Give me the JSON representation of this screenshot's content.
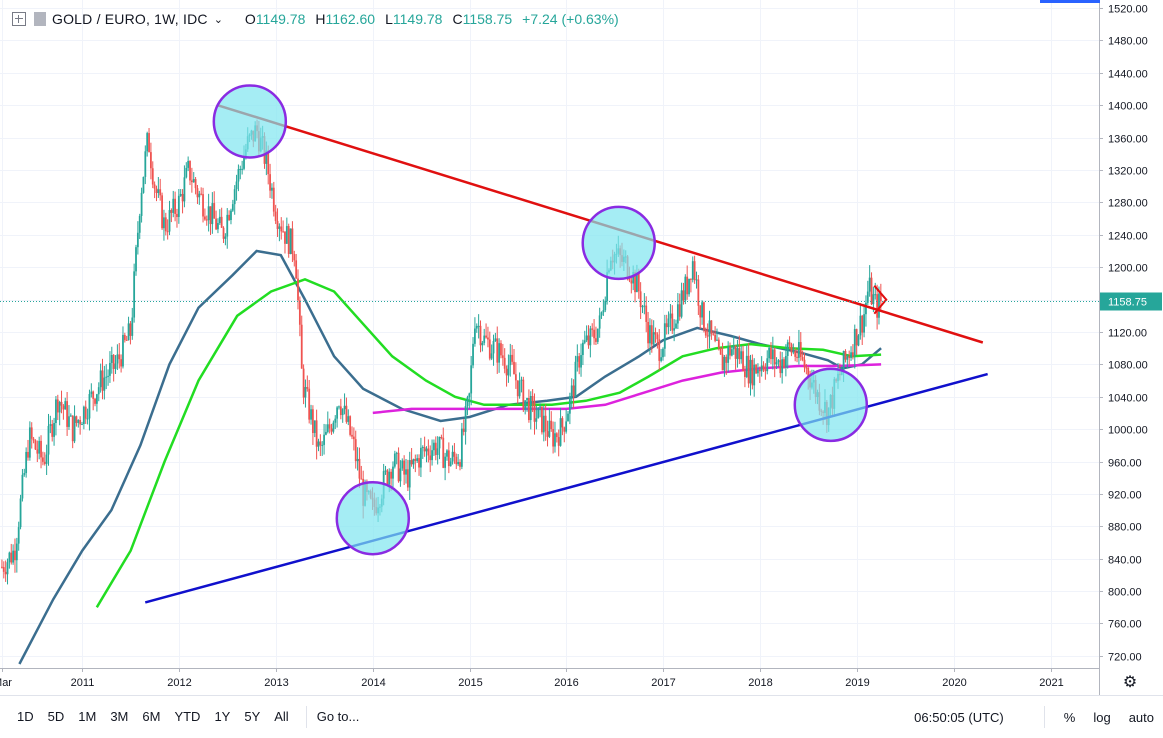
{
  "header": {
    "symbol": "GOLD / EURO, 1W, IDC",
    "ohlc": [
      {
        "k": "O",
        "v": "1149.78"
      },
      {
        "k": "H",
        "v": "1162.60"
      },
      {
        "k": "L",
        "v": "1149.78"
      },
      {
        "k": "C",
        "v": "1158.75"
      }
    ],
    "change": "+7.24 (+0.63%)"
  },
  "colors": {
    "up": "#26a69a",
    "down": "#ef5350",
    "sma_blue": "#3b6e8f",
    "sma_green": "#22dd22",
    "sma_magenta": "#dd22dd",
    "resistance": "#e01010",
    "support": "#1010cc",
    "circle_fill": "#7fe6f0",
    "circle_stroke": "#8a2be2",
    "price_line": "#26a69a"
  },
  "chart_data": {
    "type": "candlestick",
    "series_name": "GOLD / EURO",
    "interval": "1W",
    "ylim": [
      705,
      1530
    ],
    "xlim": [
      2010.15,
      2021.5
    ],
    "y_ticks": [
      "720.00",
      "760.00",
      "800.00",
      "840.00",
      "880.00",
      "920.00",
      "960.00",
      "1000.00",
      "1040.00",
      "1080.00",
      "1120.00",
      "1160.00",
      "1200.00",
      "1240.00",
      "1280.00",
      "1320.00",
      "1360.00",
      "1400.00",
      "1440.00",
      "1480.00",
      "1520.00"
    ],
    "x_ticks": [
      {
        "label": "Mar",
        "t": 2010.17
      },
      {
        "label": "2011",
        "t": 2011.0
      },
      {
        "label": "2012",
        "t": 2012.0
      },
      {
        "label": "2013",
        "t": 2013.0
      },
      {
        "label": "2014",
        "t": 2014.0
      },
      {
        "label": "2015",
        "t": 2015.0
      },
      {
        "label": "2016",
        "t": 2016.0
      },
      {
        "label": "2017",
        "t": 2017.0
      },
      {
        "label": "2018",
        "t": 2018.0
      },
      {
        "label": "2019",
        "t": 2019.0
      },
      {
        "label": "2020",
        "t": 2020.0
      },
      {
        "label": "2021",
        "t": 2021.0
      }
    ],
    "last_price": "1158.75",
    "price_path": [
      [
        2010.17,
        830
      ],
      [
        2010.3,
        850
      ],
      [
        2010.45,
        990
      ],
      [
        2010.6,
        960
      ],
      [
        2010.75,
        1040
      ],
      [
        2010.9,
        1000
      ],
      [
        2011.05,
        1030
      ],
      [
        2011.2,
        1060
      ],
      [
        2011.35,
        1080
      ],
      [
        2011.5,
        1120
      ],
      [
        2011.6,
        1290
      ],
      [
        2011.68,
        1360
      ],
      [
        2011.75,
        1300
      ],
      [
        2011.85,
        1250
      ],
      [
        2012.0,
        1280
      ],
      [
        2012.1,
        1320
      ],
      [
        2012.2,
        1290
      ],
      [
        2012.35,
        1260
      ],
      [
        2012.45,
        1240
      ],
      [
        2012.55,
        1290
      ],
      [
        2012.7,
        1350
      ],
      [
        2012.8,
        1370
      ],
      [
        2012.9,
        1330
      ],
      [
        2013.0,
        1270
      ],
      [
        2013.1,
        1240
      ],
      [
        2013.2,
        1220
      ],
      [
        2013.27,
        1060
      ],
      [
        2013.35,
        1020
      ],
      [
        2013.45,
        970
      ],
      [
        2013.55,
        1000
      ],
      [
        2013.65,
        1040
      ],
      [
        2013.8,
        980
      ],
      [
        2013.9,
        920
      ],
      [
        2014.0,
        900
      ],
      [
        2014.1,
        930
      ],
      [
        2014.2,
        960
      ],
      [
        2014.35,
        940
      ],
      [
        2014.5,
        970
      ],
      [
        2014.65,
        980
      ],
      [
        2014.8,
        960
      ],
      [
        2014.9,
        970
      ],
      [
        2015.0,
        1040
      ],
      [
        2015.05,
        1140
      ],
      [
        2015.15,
        1110
      ],
      [
        2015.25,
        1100
      ],
      [
        2015.35,
        1090
      ],
      [
        2015.45,
        1070
      ],
      [
        2015.55,
        1040
      ],
      [
        2015.65,
        1020
      ],
      [
        2015.75,
        1010
      ],
      [
        2015.85,
        990
      ],
      [
        2015.95,
        1000
      ],
      [
        2016.05,
        1040
      ],
      [
        2016.15,
        1100
      ],
      [
        2016.25,
        1110
      ],
      [
        2016.35,
        1130
      ],
      [
        2016.45,
        1220
      ],
      [
        2016.55,
        1210
      ],
      [
        2016.65,
        1200
      ],
      [
        2016.75,
        1170
      ],
      [
        2016.85,
        1120
      ],
      [
        2016.95,
        1100
      ],
      [
        2017.05,
        1120
      ],
      [
        2017.15,
        1150
      ],
      [
        2017.25,
        1180
      ],
      [
        2017.3,
        1210
      ],
      [
        2017.4,
        1140
      ],
      [
        2017.5,
        1110
      ],
      [
        2017.6,
        1080
      ],
      [
        2017.7,
        1100
      ],
      [
        2017.8,
        1090
      ],
      [
        2017.9,
        1070
      ],
      [
        2018.0,
        1080
      ],
      [
        2018.1,
        1090
      ],
      [
        2018.2,
        1080
      ],
      [
        2018.3,
        1100
      ],
      [
        2018.4,
        1090
      ],
      [
        2018.5,
        1070
      ],
      [
        2018.6,
        1040
      ],
      [
        2018.7,
        1020
      ],
      [
        2018.8,
        1060
      ],
      [
        2018.9,
        1090
      ],
      [
        2019.0,
        1120
      ],
      [
        2019.07,
        1140
      ],
      [
        2019.12,
        1175
      ],
      [
        2019.2,
        1150
      ],
      [
        2019.26,
        1158.75
      ]
    ],
    "moving_averages": [
      {
        "color_key": "sma_blue",
        "points": [
          [
            2010.35,
            710
          ],
          [
            2010.7,
            790
          ],
          [
            2011.0,
            850
          ],
          [
            2011.3,
            900
          ],
          [
            2011.6,
            980
          ],
          [
            2011.9,
            1080
          ],
          [
            2012.2,
            1150
          ],
          [
            2012.55,
            1190
          ],
          [
            2012.8,
            1220
          ],
          [
            2013.05,
            1215
          ],
          [
            2013.3,
            1160
          ],
          [
            2013.6,
            1090
          ],
          [
            2013.9,
            1050
          ],
          [
            2014.3,
            1025
          ],
          [
            2014.7,
            1010
          ],
          [
            2015.0,
            1015
          ],
          [
            2015.4,
            1030
          ],
          [
            2015.8,
            1035
          ],
          [
            2016.1,
            1040
          ],
          [
            2016.4,
            1065
          ],
          [
            2016.75,
            1090
          ],
          [
            2017.0,
            1110
          ],
          [
            2017.35,
            1125
          ],
          [
            2017.7,
            1115
          ],
          [
            2018.0,
            1105
          ],
          [
            2018.4,
            1095
          ],
          [
            2018.7,
            1085
          ],
          [
            2018.85,
            1075
          ],
          [
            2019.05,
            1080
          ],
          [
            2019.25,
            1100
          ]
        ]
      },
      {
        "color_key": "sma_green",
        "points": [
          [
            2011.15,
            780
          ],
          [
            2011.5,
            850
          ],
          [
            2011.85,
            960
          ],
          [
            2012.2,
            1060
          ],
          [
            2012.6,
            1140
          ],
          [
            2012.95,
            1170
          ],
          [
            2013.3,
            1185
          ],
          [
            2013.6,
            1170
          ],
          [
            2013.9,
            1130
          ],
          [
            2014.2,
            1090
          ],
          [
            2014.55,
            1060
          ],
          [
            2014.85,
            1040
          ],
          [
            2015.15,
            1030
          ],
          [
            2015.5,
            1030
          ],
          [
            2015.85,
            1030
          ],
          [
            2016.2,
            1035
          ],
          [
            2016.55,
            1045
          ],
          [
            2016.85,
            1065
          ],
          [
            2017.2,
            1090
          ],
          [
            2017.55,
            1100
          ],
          [
            2017.9,
            1105
          ],
          [
            2018.3,
            1100
          ],
          [
            2018.65,
            1098
          ],
          [
            2018.95,
            1090
          ],
          [
            2019.25,
            1092
          ]
        ]
      },
      {
        "color_key": "sma_magenta",
        "points": [
          [
            2014.0,
            1020
          ],
          [
            2014.4,
            1025
          ],
          [
            2014.8,
            1025
          ],
          [
            2015.2,
            1025
          ],
          [
            2015.6,
            1025
          ],
          [
            2016.0,
            1025
          ],
          [
            2016.4,
            1030
          ],
          [
            2016.8,
            1045
          ],
          [
            2017.2,
            1060
          ],
          [
            2017.6,
            1070
          ],
          [
            2018.0,
            1075
          ],
          [
            2018.4,
            1078
          ],
          [
            2018.8,
            1078
          ],
          [
            2019.25,
            1080
          ]
        ]
      }
    ],
    "trendlines": [
      {
        "color_key": "resistance",
        "from": [
          2012.4,
          1400
        ],
        "to": [
          2020.3,
          1107
        ]
      },
      {
        "color_key": "support",
        "from": [
          2011.65,
          786
        ],
        "to": [
          2020.35,
          1068
        ]
      }
    ],
    "circles": [
      [
        2012.73,
        1380
      ],
      [
        2016.54,
        1230
      ],
      [
        2014.0,
        890
      ],
      [
        2018.73,
        1030
      ]
    ]
  },
  "toolbar": {
    "ranges": [
      "1D",
      "5D",
      "1M",
      "3M",
      "6M",
      "YTD",
      "1Y",
      "5Y",
      "All"
    ],
    "goto": "Go to...",
    "clock": "06:50:05 (UTC)",
    "percent": "%",
    "log": "log",
    "auto": "auto",
    "settings_icon": "gear-icon"
  }
}
